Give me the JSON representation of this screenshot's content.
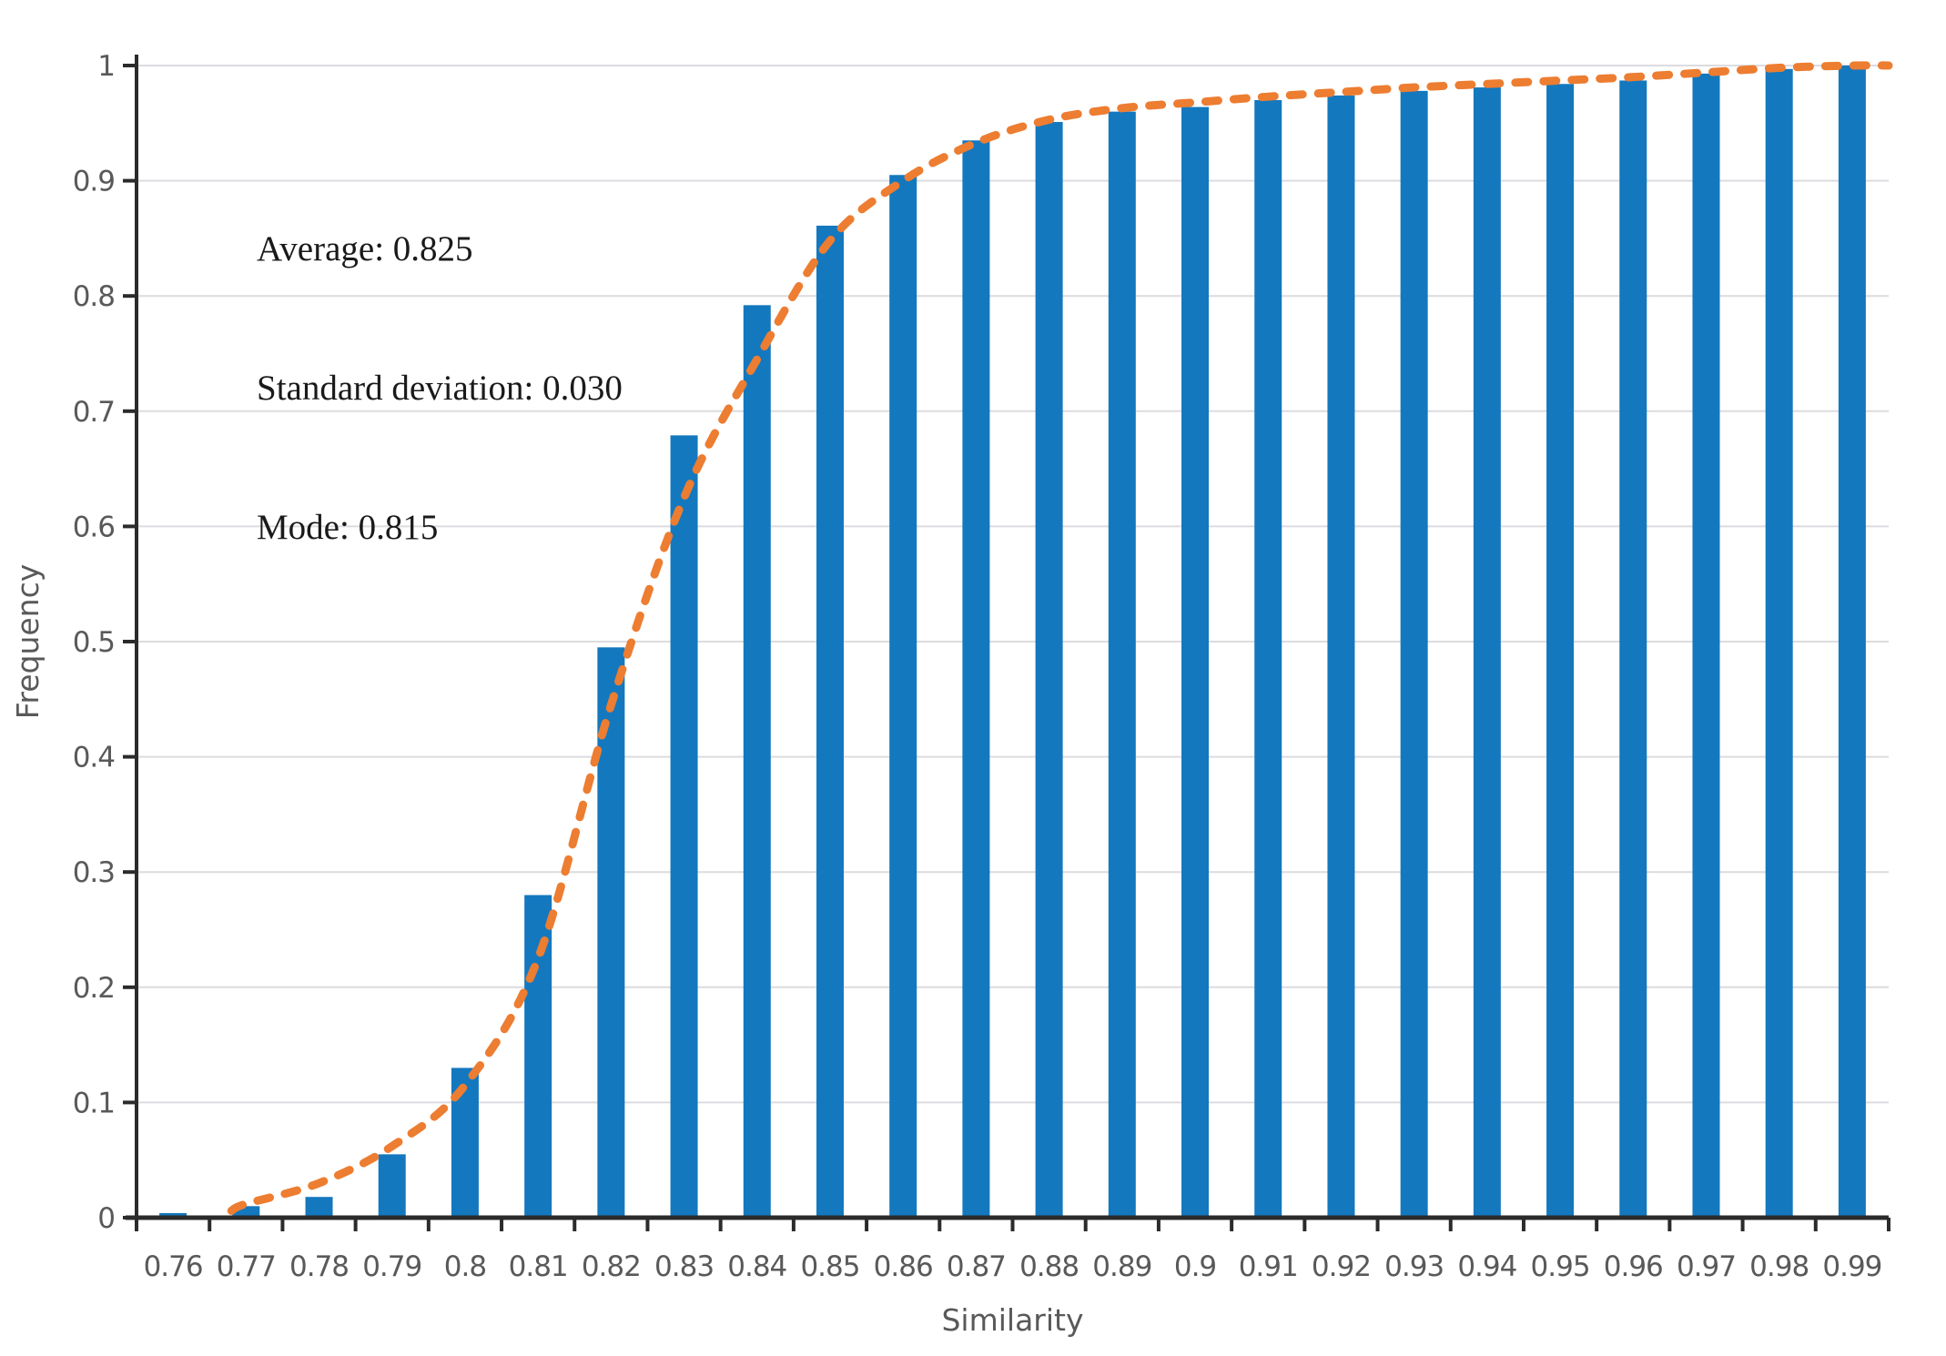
{
  "annotation": {
    "line1": "Average: 0.825",
    "line2": "Standard deviation: 0.030",
    "line3": "Mode: 0.815"
  },
  "chart_data": {
    "type": "bar",
    "title": "",
    "xlabel": "Similarity",
    "ylabel": "Frequency",
    "categories": [
      "0.76",
      "0.77",
      "0.78",
      "0.79",
      "0.8",
      "0.81",
      "0.82",
      "0.83",
      "0.84",
      "0.85",
      "0.86",
      "0.87",
      "0.88",
      "0.89",
      "0.9",
      "0.91",
      "0.92",
      "0.93",
      "0.94",
      "0.95",
      "0.96",
      "0.97",
      "0.98",
      "0.99"
    ],
    "values": [
      0.004,
      0.01,
      0.018,
      0.055,
      0.13,
      0.28,
      0.495,
      0.679,
      0.792,
      0.861,
      0.905,
      0.935,
      0.951,
      0.96,
      0.964,
      0.97,
      0.974,
      0.978,
      0.981,
      0.984,
      0.987,
      0.993,
      0.997,
      1.0
    ],
    "y_ticks": [
      "0",
      "0.1",
      "0.2",
      "0.3",
      "0.4",
      "0.5",
      "0.6",
      "0.7",
      "0.8",
      "0.9",
      "1"
    ],
    "ylim": [
      0,
      1
    ],
    "grid": true,
    "legend": "none",
    "series_name": "Frequency",
    "fit_curve": {
      "name": "fitted-cumulative-curve",
      "x": [
        0.768,
        0.77,
        0.78,
        0.79,
        0.8,
        0.81,
        0.82,
        0.83,
        0.84,
        0.85,
        0.86,
        0.87,
        0.88,
        0.89,
        0.9,
        0.91,
        0.92,
        0.93,
        0.94,
        0.95,
        0.96,
        0.97,
        0.98,
        0.99,
        0.995
      ],
      "y": [
        0.006,
        0.012,
        0.03,
        0.062,
        0.115,
        0.225,
        0.445,
        0.625,
        0.745,
        0.848,
        0.9,
        0.933,
        0.953,
        0.963,
        0.968,
        0.973,
        0.977,
        0.981,
        0.984,
        0.987,
        0.99,
        0.994,
        0.998,
        1.0,
        1.0
      ]
    },
    "colors": {
      "bar": "#1478BE",
      "curve": "#ED7D31",
      "gridline": "#DCDCE0",
      "axis": "#2B2B2B",
      "tick_text": "#595959",
      "annotation_text": "#1A1A1A",
      "background": "#FFFFFF"
    }
  }
}
